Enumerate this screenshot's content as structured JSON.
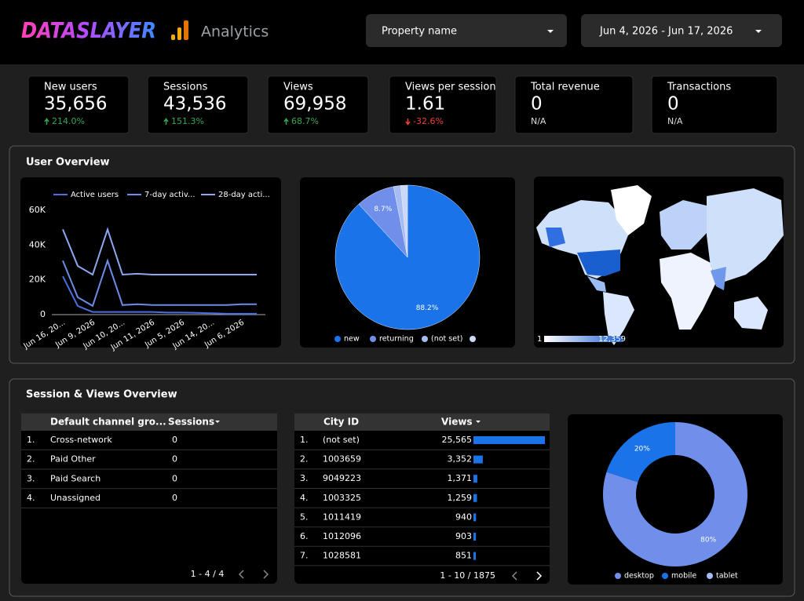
{
  "header": {
    "brand": "DATASLAYER",
    "product": "Analytics",
    "property_filter": "Property name",
    "date_range": "Jun 4, 2026 - Jun 17, 2026"
  },
  "kpis": [
    {
      "label": "New users",
      "value": "35,656",
      "change": "214.0%",
      "trend": "up"
    },
    {
      "label": "Sessions",
      "value": "43,536",
      "change": "151.3%",
      "trend": "up"
    },
    {
      "label": "Views",
      "value": "69,958",
      "change": "68.7%",
      "trend": "up"
    },
    {
      "label": "Views per session",
      "value": "1.61",
      "change": "-32.6%",
      "trend": "down"
    },
    {
      "label": "Total revenue",
      "value": "0",
      "change": "N/A"
    },
    {
      "label": "Transactions",
      "value": "0",
      "change": "N/A"
    }
  ],
  "user_overview": {
    "title": "User Overview",
    "map": {
      "scale_min": "1",
      "scale_max": "12,359"
    }
  },
  "session_views_overview": {
    "title": "Session & Views Overview",
    "channel_table": {
      "columns": [
        "Default channel gro...",
        "Sessions"
      ],
      "rows": [
        {
          "index": "1.",
          "channel": "Cross-network",
          "sessions": 0
        },
        {
          "index": "2.",
          "channel": "Paid Other",
          "sessions": 0
        },
        {
          "index": "3.",
          "channel": "Paid Search",
          "sessions": 0
        },
        {
          "index": "4.",
          "channel": "Unassigned",
          "sessions": 0
        }
      ],
      "pagination": "1 - 4 / 4"
    },
    "city_table": {
      "columns": [
        "City ID",
        "Views"
      ],
      "rows": [
        {
          "index": "1.",
          "city": "(not set)",
          "views": {
            "value": 25565,
            "label": "25,565"
          }
        },
        {
          "index": "2.",
          "city": "1003659",
          "views": {
            "value": 3352,
            "label": "3,352"
          }
        },
        {
          "index": "3.",
          "city": "9049223",
          "views": {
            "value": 1371,
            "label": "1,371"
          }
        },
        {
          "index": "4.",
          "city": "1003325",
          "views": {
            "value": 1259,
            "label": "1,259"
          }
        },
        {
          "index": "5.",
          "city": "1011419",
          "views": {
            "value": 940,
            "label": "940"
          }
        },
        {
          "index": "6.",
          "city": "1012096",
          "views": {
            "value": 903,
            "label": "903"
          }
        },
        {
          "index": "7.",
          "city": "1028581",
          "views": {
            "value": 851,
            "label": "851"
          }
        }
      ],
      "pagination": "1 - 10 / 1875"
    }
  },
  "chart_data": [
    {
      "type": "line",
      "categories": [
        "Jun 16, 20...",
        null,
        "Jun 9, 2026",
        null,
        "Jun 10, 20...",
        null,
        "Jun 11, 2026",
        null,
        "Jun 5, 2026",
        null,
        "Jun 14, 20...",
        null,
        "Jun 6, 2026",
        null
      ],
      "series": [
        {
          "name": "Active users",
          "color": "#4a6fe3",
          "values": [
            22000,
            5000,
            1500,
            1500,
            1500,
            1500,
            1500,
            1200,
            1200,
            1000,
            800,
            500,
            500,
            500
          ]
        },
        {
          "name": "7-day activ...",
          "color": "#6d8ce8",
          "values": [
            31000,
            10000,
            5000,
            31000,
            5500,
            6000,
            5500,
            5500,
            5500,
            5500,
            5500,
            5500,
            6000,
            6000
          ]
        },
        {
          "name": "28-day acti...",
          "color": "#8ea8f0",
          "values": [
            49000,
            28000,
            23000,
            49000,
            23000,
            23500,
            23000,
            23000,
            23000,
            23000,
            23000,
            23000,
            23000,
            23000
          ]
        }
      ],
      "ylim": [
        0,
        60000
      ],
      "yticks": [
        0,
        {
          "value": 20000,
          "label": "20K"
        },
        {
          "value": 40000,
          "label": "40K"
        },
        {
          "value": 60000,
          "label": "60K"
        }
      ],
      "grid": false
    },
    {
      "type": "pie",
      "categories": [
        "new",
        "returning",
        "(not set)",
        null
      ],
      "values": [
        88.2,
        8.7,
        1.6,
        1.5
      ],
      "value_labels": [
        "88.2%",
        "8.7%",
        null,
        null
      ],
      "colors": [
        "#1a73e8",
        "#6f8fea",
        "#a7bcf3",
        "#cbd8f8"
      ]
    },
    {
      "type": "donut",
      "categories": [
        "desktop",
        "mobile",
        "tablet"
      ],
      "values": [
        80,
        20,
        0
      ],
      "value_labels": [
        "80%",
        "20%",
        null
      ],
      "colors": [
        "#6f8fea",
        "#1a73e8",
        "#a7bcf3"
      ]
    }
  ]
}
